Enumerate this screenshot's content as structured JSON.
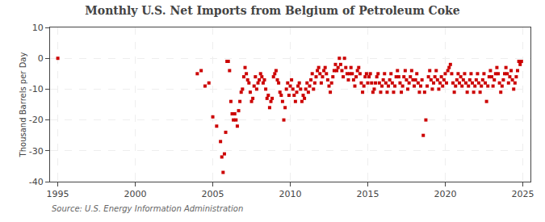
{
  "chart_data": {
    "type": "scatter",
    "title": "Monthly U.S. Net Imports from Belgium of Petroleum Coke",
    "ylabel": "Thousand Barrels per Day",
    "annotations": [
      "Source: U.S. Energy Information Administration"
    ],
    "color": "#cc0000",
    "marker": "square",
    "grid": true,
    "xlim": [
      1994.5,
      2025.5
    ],
    "ylim": [
      -40,
      10
    ],
    "xticks": [
      1995,
      2000,
      2005,
      2010,
      2015,
      2020,
      2025
    ],
    "yticks": [
      -40,
      -30,
      -20,
      -10,
      0,
      10
    ],
    "x": [
      1995.0,
      2004.0,
      2004.25,
      2004.5,
      2004.75,
      2005.0,
      2005.25,
      2005.5,
      2005.583,
      2005.667,
      2005.75,
      2005.833,
      2005.917,
      2006.0,
      2006.083,
      2006.167,
      2006.25,
      2006.333,
      2006.417,
      2006.5,
      2006.583,
      2006.667,
      2006.75,
      2006.833,
      2006.917,
      2007.0,
      2007.083,
      2007.167,
      2007.25,
      2007.333,
      2007.417,
      2007.5,
      2007.583,
      2007.667,
      2007.75,
      2007.833,
      2007.917,
      2008.0,
      2008.083,
      2008.167,
      2008.25,
      2008.333,
      2008.417,
      2008.5,
      2008.583,
      2008.667,
      2008.75,
      2008.833,
      2008.917,
      2009.0,
      2009.083,
      2009.167,
      2009.25,
      2009.333,
      2009.417,
      2009.5,
      2009.583,
      2009.667,
      2009.75,
      2009.833,
      2009.917,
      2010.0,
      2010.083,
      2010.167,
      2010.25,
      2010.333,
      2010.417,
      2010.5,
      2010.583,
      2010.667,
      2010.75,
      2010.833,
      2010.917,
      2011.0,
      2011.083,
      2011.167,
      2011.25,
      2011.333,
      2011.417,
      2011.5,
      2011.583,
      2011.667,
      2011.75,
      2011.833,
      2011.917,
      2012.0,
      2012.083,
      2012.167,
      2012.25,
      2012.333,
      2012.417,
      2012.5,
      2012.583,
      2012.667,
      2012.75,
      2012.833,
      2012.917,
      2013.0,
      2013.083,
      2013.167,
      2013.25,
      2013.333,
      2013.417,
      2013.5,
      2013.583,
      2013.667,
      2013.75,
      2013.833,
      2013.917,
      2014.0,
      2014.083,
      2014.167,
      2014.25,
      2014.333,
      2014.417,
      2014.5,
      2014.583,
      2014.667,
      2014.75,
      2014.833,
      2014.917,
      2015.0,
      2015.083,
      2015.167,
      2015.25,
      2015.333,
      2015.417,
      2015.5,
      2015.583,
      2015.667,
      2015.75,
      2015.833,
      2015.917,
      2016.0,
      2016.083,
      2016.167,
      2016.25,
      2016.333,
      2016.417,
      2016.5,
      2016.583,
      2016.667,
      2016.75,
      2016.833,
      2016.917,
      2017.0,
      2017.083,
      2017.167,
      2017.25,
      2017.333,
      2017.417,
      2017.5,
      2017.583,
      2017.667,
      2017.75,
      2017.833,
      2017.917,
      2018.0,
      2018.083,
      2018.167,
      2018.25,
      2018.333,
      2018.417,
      2018.5,
      2018.583,
      2018.667,
      2018.75,
      2018.833,
      2018.917,
      2019.0,
      2019.083,
      2019.167,
      2019.25,
      2019.333,
      2019.417,
      2019.5,
      2019.583,
      2019.667,
      2019.75,
      2019.833,
      2019.917,
      2020.0,
      2020.083,
      2020.167,
      2020.25,
      2020.333,
      2020.417,
      2020.5,
      2020.583,
      2020.667,
      2020.75,
      2020.833,
      2020.917,
      2021.0,
      2021.083,
      2021.167,
      2021.25,
      2021.333,
      2021.417,
      2021.5,
      2021.583,
      2021.667,
      2021.75,
      2021.833,
      2021.917,
      2022.0,
      2022.083,
      2022.167,
      2022.25,
      2022.333,
      2022.417,
      2022.5,
      2022.583,
      2022.667,
      2022.75,
      2022.833,
      2022.917,
      2023.0,
      2023.083,
      2023.167,
      2023.25,
      2023.333,
      2023.417,
      2023.5,
      2023.583,
      2023.667,
      2023.75,
      2023.833,
      2023.917,
      2024.0,
      2024.083,
      2024.167,
      2024.25,
      2024.333,
      2024.417,
      2024.5,
      2024.583,
      2024.667,
      2024.75,
      2024.833,
      2024.917
    ],
    "values": [
      0,
      -5,
      -4,
      -9,
      -8,
      -19,
      -22,
      -27,
      -32,
      -37,
      -31,
      -24,
      -1,
      -1,
      -4,
      -14,
      -18,
      -20,
      -18,
      -20,
      -22,
      -17,
      -14,
      -11,
      -10,
      -6,
      -3,
      -5,
      -7,
      -8,
      -11,
      -14,
      -13,
      -9,
      -6,
      -10,
      -8,
      -7,
      -5,
      -6,
      -8,
      -7,
      -10,
      -13,
      -12,
      -16,
      -14,
      -13,
      -6,
      -5,
      -4,
      -7,
      -8,
      -11,
      -12,
      -14,
      -20,
      -16,
      -10,
      -8,
      -12,
      -9,
      -7,
      -10,
      -12,
      -14,
      -11,
      -9,
      -8,
      -10,
      -14,
      -12,
      -13,
      -10,
      -8,
      -11,
      -9,
      -7,
      -5,
      -10,
      -8,
      -6,
      -4,
      -3,
      -5,
      -8,
      -6,
      -4,
      -3,
      -5,
      -7,
      -9,
      -11,
      -8,
      -6,
      -4,
      -2,
      -4,
      -3,
      0,
      -2,
      -4,
      -6,
      0,
      -3,
      -5,
      -7,
      -5,
      -3,
      -5,
      -7,
      -9,
      -6,
      -4,
      -3,
      -5,
      -8,
      -11,
      -9,
      -6,
      -5,
      -8,
      -6,
      -5,
      -8,
      -11,
      -10,
      -8,
      -6,
      -5,
      -8,
      -11,
      -9,
      -7,
      -5,
      -8,
      -11,
      -9,
      -7,
      -5,
      -8,
      -11,
      -9,
      -6,
      -4,
      -6,
      -8,
      -11,
      -9,
      -6,
      -4,
      -7,
      -10,
      -8,
      -6,
      -4,
      -7,
      -9,
      -7,
      -5,
      -8,
      -11,
      -9,
      -7,
      -25,
      -11,
      -20,
      -9,
      -6,
      -4,
      -7,
      -10,
      -8,
      -6,
      -4,
      -7,
      -10,
      -8,
      -6,
      -9,
      -7,
      -5,
      -8,
      -4,
      -3,
      -2,
      -5,
      -8,
      -11,
      -9,
      -7,
      -5,
      -8,
      -6,
      -9,
      -7,
      -5,
      -8,
      -11,
      -9,
      -7,
      -5,
      -8,
      -11,
      -9,
      -7,
      -5,
      -8,
      -11,
      -9,
      -7,
      -5,
      -8,
      -14,
      -9,
      -6,
      -4,
      -6,
      -9,
      -7,
      -5,
      -3,
      -5,
      -8,
      -11,
      -9,
      -7,
      -5,
      -3,
      -5,
      -8,
      -6,
      -4,
      -7,
      -10,
      -8,
      -6,
      -4,
      -1,
      -2,
      -1
    ]
  }
}
